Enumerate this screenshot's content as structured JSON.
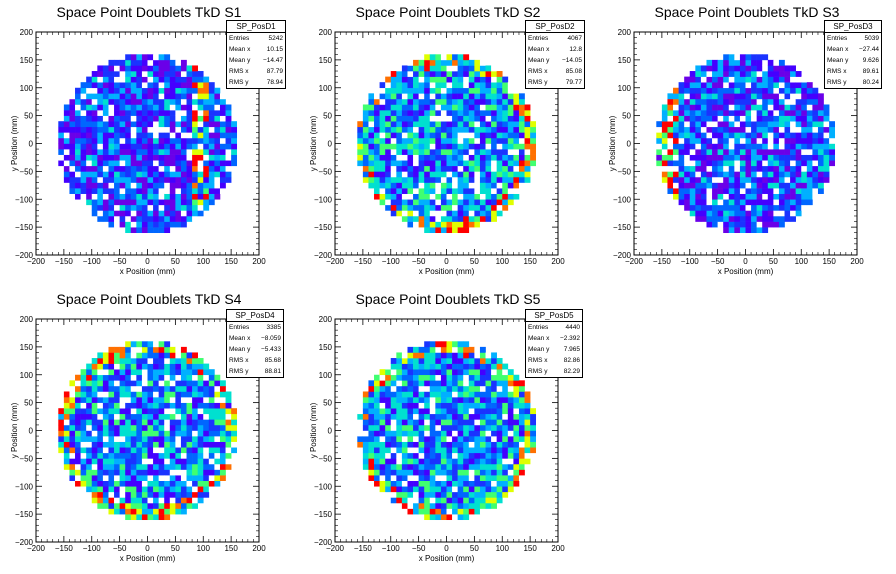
{
  "chart_data": [
    {
      "type": "heatmap",
      "title": "Space Point Doublets TkD S1",
      "xlabel": "x Position (mm)",
      "ylabel": "y Position (mm)",
      "xlim": [
        -200,
        200
      ],
      "ylim": [
        -200,
        200
      ],
      "xticks": [
        "−200",
        "−150",
        "−100",
        "−50",
        "0",
        "50",
        "100",
        "150",
        "200"
      ],
      "yticks": [
        "200",
        "150",
        "100",
        "50",
        "0",
        "−50",
        "−100",
        "−150",
        "−200"
      ],
      "stats": {
        "name": "SP_PosD1",
        "rows": [
          [
            "Entries",
            "5242"
          ],
          [
            "Mean x",
            "10.15"
          ],
          [
            "Mean y",
            "−14.47"
          ],
          [
            "RMS x",
            "87.79"
          ],
          [
            "RMS y",
            "78.94"
          ]
        ]
      },
      "grid": false
    },
    {
      "type": "heatmap",
      "title": "Space Point Doublets TkD S2",
      "xlabel": "x Position (mm)",
      "ylabel": "y Position (mm)",
      "xlim": [
        -200,
        200
      ],
      "ylim": [
        -200,
        200
      ],
      "xticks": [
        "−200",
        "−150",
        "−100",
        "−50",
        "0",
        "50",
        "100",
        "150",
        "200"
      ],
      "yticks": [
        "200",
        "150",
        "100",
        "50",
        "0",
        "−50",
        "−100",
        "−150",
        "−200"
      ],
      "stats": {
        "name": "SP_PosD2",
        "rows": [
          [
            "Entries",
            "4067"
          ],
          [
            "Mean x",
            "12.8"
          ],
          [
            "Mean y",
            "−14.05"
          ],
          [
            "RMS x",
            "85.08"
          ],
          [
            "RMS y",
            "79.77"
          ]
        ]
      },
      "grid": false
    },
    {
      "type": "heatmap",
      "title": "Space Point Doublets TkD S3",
      "xlabel": "x Position (mm)",
      "ylabel": "y Position (mm)",
      "xlim": [
        -200,
        200
      ],
      "ylim": [
        -200,
        200
      ],
      "xticks": [
        "−200",
        "−150",
        "−100",
        "−50",
        "0",
        "50",
        "100",
        "150",
        "200"
      ],
      "yticks": [
        "200",
        "150",
        "100",
        "50",
        "0",
        "−50",
        "−100",
        "−150",
        "−200"
      ],
      "stats": {
        "name": "SP_PosD3",
        "rows": [
          [
            "Entries",
            "5039"
          ],
          [
            "Mean x",
            "−27.44"
          ],
          [
            "Mean y",
            "9.626"
          ],
          [
            "RMS x",
            "89.61"
          ],
          [
            "RMS y",
            "80.24"
          ]
        ]
      },
      "grid": false
    },
    {
      "type": "heatmap",
      "title": "Space Point Doublets TkD S4",
      "xlabel": "x Position (mm)",
      "ylabel": "y Position (mm)",
      "xlim": [
        -200,
        200
      ],
      "ylim": [
        -200,
        200
      ],
      "xticks": [
        "−200",
        "−150",
        "−100",
        "−50",
        "0",
        "50",
        "100",
        "150",
        "200"
      ],
      "yticks": [
        "200",
        "150",
        "100",
        "50",
        "0",
        "−50",
        "−100",
        "−150",
        "−200"
      ],
      "stats": {
        "name": "SP_PosD4",
        "rows": [
          [
            "Entries",
            "3385"
          ],
          [
            "Mean x",
            "−8.059"
          ],
          [
            "Mean y",
            "−5.433"
          ],
          [
            "RMS x",
            "85.68"
          ],
          [
            "RMS y",
            "88.81"
          ]
        ]
      },
      "grid": false
    },
    {
      "type": "heatmap",
      "title": "Space Point Doublets TkD S5",
      "xlabel": "x Position (mm)",
      "ylabel": "y Position (mm)",
      "xlim": [
        -200,
        200
      ],
      "ylim": [
        -200,
        200
      ],
      "xticks": [
        "−200",
        "−150",
        "−100",
        "−50",
        "0",
        "50",
        "100",
        "150",
        "200"
      ],
      "yticks": [
        "200",
        "150",
        "100",
        "50",
        "0",
        "−50",
        "−100",
        "−150",
        "−200"
      ],
      "stats": {
        "name": "SP_PosD5",
        "rows": [
          [
            "Entries",
            "4440"
          ],
          [
            "Mean x",
            "−2.392"
          ],
          [
            "Mean y",
            "7.965"
          ],
          [
            "RMS x",
            "82.86"
          ],
          [
            "RMS y",
            "82.29"
          ]
        ]
      },
      "grid": false
    }
  ],
  "detector_radius_mm": 160,
  "bin_width_mm": 10,
  "palette": [
    "#ffffff",
    "#6a00e8",
    "#4400ff",
    "#1a33ff",
    "#0066ff",
    "#00b0ff",
    "#00e0d0",
    "#40ff70",
    "#e0ff00",
    "#ff7000",
    "#ff0000"
  ]
}
